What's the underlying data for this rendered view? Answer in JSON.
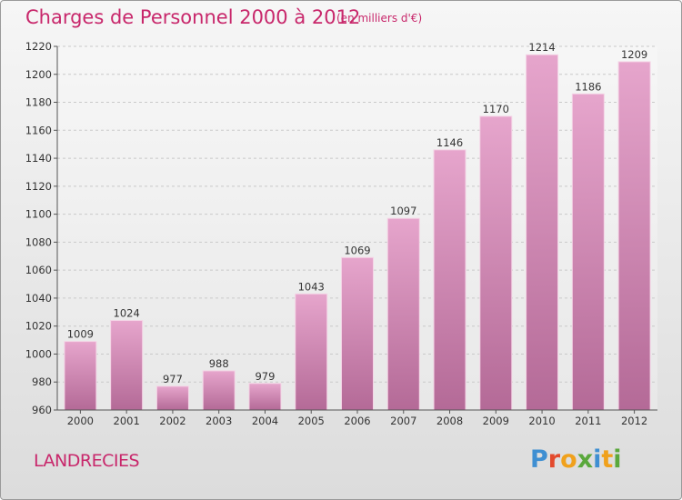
{
  "header": {
    "title": "Charges de Personnel 2000 à 2012",
    "unit": "(en milliers d'€)"
  },
  "footer": {
    "commune": "LANDRECIES",
    "logo_text": "Proxiti"
  },
  "colors": {
    "accent": "#c8276b",
    "bar_top": "#e6a5cc",
    "bar_bottom": "#b46a97",
    "logo": [
      "#3f8fd2",
      "#e34a2d",
      "#f0a11c",
      "#5aa83c",
      "#3f8fd2",
      "#f0a11c",
      "#5aa83c"
    ]
  },
  "chart_data": {
    "type": "bar",
    "categories": [
      "2000",
      "2001",
      "2002",
      "2003",
      "2004",
      "2005",
      "2006",
      "2007",
      "2008",
      "2009",
      "2010",
      "2011",
      "2012"
    ],
    "values": [
      1009,
      1024,
      977,
      988,
      979,
      1043,
      1069,
      1097,
      1146,
      1170,
      1214,
      1186,
      1209
    ],
    "ylim": [
      960,
      1220
    ],
    "yticks": [
      960,
      980,
      1000,
      1020,
      1040,
      1060,
      1080,
      1100,
      1120,
      1140,
      1160,
      1180,
      1200,
      1220
    ],
    "grid": true,
    "data_labels": true
  }
}
